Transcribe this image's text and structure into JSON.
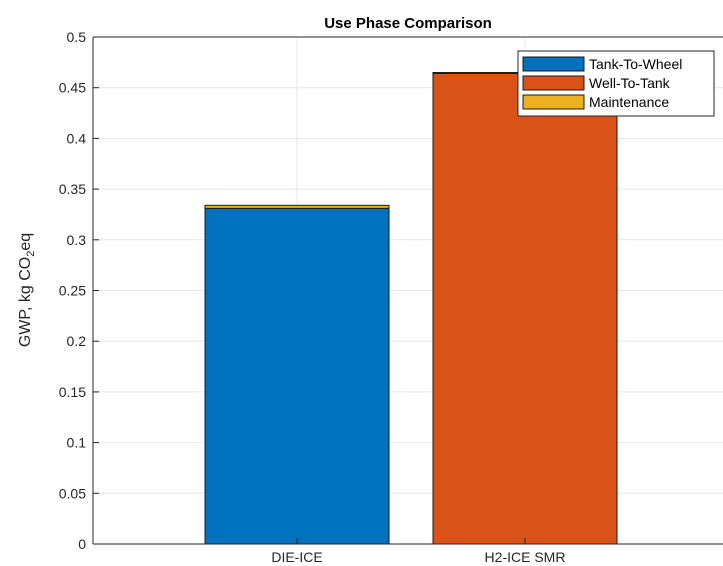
{
  "chart_data": {
    "type": "bar",
    "stacked": true,
    "title": "Use Phase Comparison",
    "ylabel": "GWP, kg CO2eq",
    "ylabel_parts": {
      "pre": "GWP, kg CO",
      "sub": "2",
      "post": "eq"
    },
    "xlabel": "",
    "categories": [
      "DIE-ICE",
      "H2-ICE SMR"
    ],
    "ylim": [
      0,
      0.5
    ],
    "yticks": [
      "0",
      "0.05",
      "0.1",
      "0.15",
      "0.2",
      "0.25",
      "0.3",
      "0.35",
      "0.4",
      "0.45",
      "0.5"
    ],
    "grid": true,
    "legend_position": "top-right",
    "series": [
      {
        "name": "Tank-To-Wheel",
        "color": "#0072BD",
        "values": [
          0.331,
          0.0
        ]
      },
      {
        "name": "Well-To-Tank",
        "color": "#D95319",
        "values": [
          0.0,
          0.464
        ]
      },
      {
        "name": "Maintenance",
        "color": "#EDB120",
        "values": [
          0.003,
          0.001
        ]
      }
    ]
  }
}
